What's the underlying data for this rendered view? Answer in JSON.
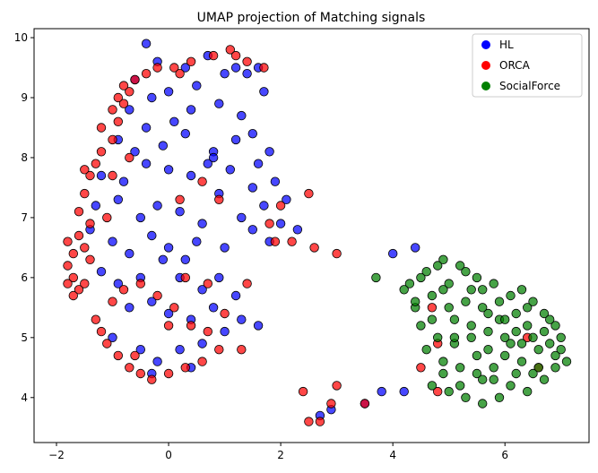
{
  "chart_data": {
    "type": "scatter",
    "title": "UMAP projection of Matching signals",
    "xlabel": "",
    "ylabel": "",
    "xlim": [
      -2.4,
      7.5
    ],
    "ylim": [
      3.25,
      10.15
    ],
    "xticks": [
      -2,
      0,
      2,
      4,
      6
    ],
    "yticks": [
      4,
      5,
      6,
      7,
      8,
      9,
      10
    ],
    "grid": false,
    "legend_position": "top-right",
    "series": [
      {
        "name": "HL",
        "color": "#0000ff",
        "points": [
          [
            -0.4,
            9.9
          ],
          [
            -0.2,
            9.6
          ],
          [
            0.3,
            9.5
          ],
          [
            0.7,
            9.7
          ],
          [
            1.0,
            9.4
          ],
          [
            1.2,
            9.5
          ],
          [
            1.6,
            9.5
          ],
          [
            -0.6,
            9.3
          ],
          [
            -0.3,
            9.0
          ],
          [
            0.0,
            9.1
          ],
          [
            0.5,
            9.2
          ],
          [
            1.4,
            9.4
          ],
          [
            1.7,
            9.1
          ],
          [
            -0.7,
            8.8
          ],
          [
            -0.4,
            8.5
          ],
          [
            0.1,
            8.6
          ],
          [
            0.4,
            8.8
          ],
          [
            0.9,
            8.9
          ],
          [
            1.3,
            8.7
          ],
          [
            1.5,
            8.4
          ],
          [
            -0.9,
            8.3
          ],
          [
            -0.6,
            8.1
          ],
          [
            -0.1,
            8.2
          ],
          [
            0.3,
            8.4
          ],
          [
            0.8,
            8.1
          ],
          [
            1.2,
            8.3
          ],
          [
            1.8,
            8.1
          ],
          [
            -1.2,
            7.7
          ],
          [
            -0.8,
            7.6
          ],
          [
            -0.4,
            7.9
          ],
          [
            0.0,
            7.8
          ],
          [
            0.4,
            7.7
          ],
          [
            0.7,
            7.9
          ],
          [
            1.1,
            7.8
          ],
          [
            1.5,
            7.5
          ],
          [
            1.9,
            7.6
          ],
          [
            -1.3,
            7.2
          ],
          [
            -0.9,
            7.3
          ],
          [
            -0.5,
            7.0
          ],
          [
            -0.2,
            7.2
          ],
          [
            0.2,
            7.1
          ],
          [
            0.6,
            6.9
          ],
          [
            0.9,
            7.4
          ],
          [
            1.3,
            7.0
          ],
          [
            1.7,
            7.2
          ],
          [
            2.0,
            6.9
          ],
          [
            2.3,
            6.8
          ],
          [
            -1.4,
            6.8
          ],
          [
            -1.0,
            6.6
          ],
          [
            -0.7,
            6.4
          ],
          [
            -0.3,
            6.7
          ],
          [
            0.0,
            6.5
          ],
          [
            0.3,
            6.3
          ],
          [
            0.5,
            6.6
          ],
          [
            1.0,
            6.5
          ],
          [
            1.5,
            6.8
          ],
          [
            1.8,
            6.6
          ],
          [
            -1.2,
            6.1
          ],
          [
            -0.9,
            5.9
          ],
          [
            -0.5,
            6.0
          ],
          [
            -0.1,
            6.3
          ],
          [
            0.2,
            6.0
          ],
          [
            0.6,
            5.8
          ],
          [
            0.9,
            6.0
          ],
          [
            1.2,
            5.7
          ],
          [
            -0.7,
            5.5
          ],
          [
            -0.3,
            5.6
          ],
          [
            0.0,
            5.4
          ],
          [
            0.4,
            5.3
          ],
          [
            0.8,
            5.5
          ],
          [
            1.3,
            5.3
          ],
          [
            1.6,
            5.2
          ],
          [
            -1.0,
            5.0
          ],
          [
            -0.5,
            4.8
          ],
          [
            -0.2,
            4.6
          ],
          [
            0.2,
            4.8
          ],
          [
            0.6,
            4.9
          ],
          [
            1.0,
            5.1
          ],
          [
            -0.3,
            4.4
          ],
          [
            0.4,
            4.5
          ],
          [
            3.8,
            4.1
          ],
          [
            4.0,
            6.4
          ],
          [
            4.4,
            6.5
          ],
          [
            3.5,
            3.9
          ],
          [
            2.7,
            3.7
          ],
          [
            2.9,
            3.8
          ],
          [
            4.2,
            4.1
          ],
          [
            0.8,
            8.0
          ],
          [
            1.6,
            7.9
          ],
          [
            2.1,
            7.3
          ]
        ]
      },
      {
        "name": "ORCA",
        "color": "#ff0000",
        "points": [
          [
            -1.8,
            6.6
          ],
          [
            -1.7,
            6.4
          ],
          [
            -1.8,
            6.2
          ],
          [
            -1.7,
            6.0
          ],
          [
            -1.6,
            5.8
          ],
          [
            -1.5,
            6.5
          ],
          [
            -1.4,
            6.3
          ],
          [
            -1.6,
            6.7
          ],
          [
            -1.8,
            5.9
          ],
          [
            -1.5,
            5.9
          ],
          [
            -1.5,
            7.4
          ],
          [
            -1.4,
            7.7
          ],
          [
            -1.3,
            7.9
          ],
          [
            -1.2,
            8.1
          ],
          [
            -1.0,
            8.3
          ],
          [
            -0.9,
            8.6
          ],
          [
            -0.8,
            8.9
          ],
          [
            -0.7,
            9.1
          ],
          [
            -0.6,
            9.3
          ],
          [
            -0.4,
            9.4
          ],
          [
            -0.2,
            9.5
          ],
          [
            0.1,
            9.5
          ],
          [
            0.4,
            9.6
          ],
          [
            0.8,
            9.7
          ],
          [
            1.1,
            9.8
          ],
          [
            1.4,
            9.6
          ],
          [
            1.7,
            9.5
          ],
          [
            -1.2,
            8.5
          ],
          [
            -1.0,
            8.8
          ],
          [
            -0.8,
            9.2
          ],
          [
            -1.3,
            5.3
          ],
          [
            -1.2,
            5.1
          ],
          [
            -1.1,
            4.9
          ],
          [
            -0.9,
            4.7
          ],
          [
            -0.7,
            4.5
          ],
          [
            -0.5,
            4.4
          ],
          [
            -0.3,
            4.3
          ],
          [
            0.0,
            4.4
          ],
          [
            0.3,
            4.5
          ],
          [
            0.6,
            4.6
          ],
          [
            0.9,
            4.8
          ],
          [
            -1.0,
            5.6
          ],
          [
            -0.8,
            5.8
          ],
          [
            -0.5,
            5.9
          ],
          [
            -0.2,
            5.7
          ],
          [
            0.1,
            5.5
          ],
          [
            0.4,
            5.2
          ],
          [
            0.7,
            5.1
          ],
          [
            1.0,
            5.4
          ],
          [
            0.2,
            7.3
          ],
          [
            0.6,
            7.6
          ],
          [
            0.9,
            7.3
          ],
          [
            0.3,
            6.0
          ],
          [
            0.7,
            5.9
          ],
          [
            1.3,
            4.8
          ],
          [
            -1.6,
            7.1
          ],
          [
            -1.4,
            6.9
          ],
          [
            -1.1,
            7.0
          ],
          [
            -1.0,
            7.7
          ],
          [
            -0.7,
            8.0
          ],
          [
            2.4,
            4.1
          ],
          [
            2.5,
            3.6
          ],
          [
            2.7,
            3.6
          ],
          [
            2.9,
            3.9
          ],
          [
            3.0,
            4.2
          ],
          [
            3.5,
            3.9
          ],
          [
            3.0,
            6.4
          ],
          [
            2.6,
            6.5
          ],
          [
            2.2,
            6.6
          ],
          [
            1.9,
            6.6
          ],
          [
            1.8,
            6.9
          ],
          [
            2.0,
            7.2
          ],
          [
            2.5,
            7.4
          ],
          [
            1.4,
            5.9
          ],
          [
            4.7,
            5.5
          ],
          [
            4.8,
            4.9
          ],
          [
            4.5,
            4.5
          ],
          [
            6.4,
            5.0
          ],
          [
            6.6,
            4.5
          ],
          [
            4.8,
            4.1
          ],
          [
            -1.5,
            7.8
          ],
          [
            -0.9,
            9.0
          ],
          [
            0.2,
            9.4
          ],
          [
            1.2,
            9.7
          ],
          [
            -1.7,
            5.7
          ],
          [
            -0.6,
            4.7
          ],
          [
            0.0,
            5.2
          ]
        ]
      },
      {
        "name": "SocialForce",
        "color": "#008000",
        "points": [
          [
            4.3,
            5.9
          ],
          [
            4.6,
            6.1
          ],
          [
            4.9,
            6.3
          ],
          [
            5.2,
            6.2
          ],
          [
            5.5,
            6.0
          ],
          [
            5.8,
            5.9
          ],
          [
            6.1,
            5.7
          ],
          [
            6.4,
            5.5
          ],
          [
            6.7,
            5.4
          ],
          [
            6.9,
            5.2
          ],
          [
            4.4,
            5.5
          ],
          [
            4.7,
            5.7
          ],
          [
            5.0,
            5.9
          ],
          [
            5.3,
            5.6
          ],
          [
            5.6,
            5.5
          ],
          [
            5.9,
            5.3
          ],
          [
            6.2,
            5.1
          ],
          [
            6.5,
            5.0
          ],
          [
            6.8,
            4.9
          ],
          [
            7.0,
            4.8
          ],
          [
            4.5,
            5.2
          ],
          [
            4.8,
            5.0
          ],
          [
            5.1,
            4.9
          ],
          [
            5.4,
            5.0
          ],
          [
            5.7,
            4.8
          ],
          [
            6.0,
            4.7
          ],
          [
            6.3,
            4.6
          ],
          [
            6.6,
            4.5
          ],
          [
            6.9,
            4.7
          ],
          [
            7.1,
            4.6
          ],
          [
            4.6,
            4.8
          ],
          [
            4.9,
            4.6
          ],
          [
            5.2,
            4.5
          ],
          [
            5.5,
            4.4
          ],
          [
            5.8,
            4.3
          ],
          [
            6.1,
            4.2
          ],
          [
            6.4,
            4.1
          ],
          [
            6.7,
            4.3
          ],
          [
            4.7,
            4.2
          ],
          [
            5.0,
            4.1
          ],
          [
            5.3,
            4.0
          ],
          [
            5.6,
            3.9
          ],
          [
            5.9,
            4.0
          ],
          [
            6.2,
            4.4
          ],
          [
            4.2,
            5.8
          ],
          [
            4.5,
            6.0
          ],
          [
            4.8,
            6.2
          ],
          [
            5.1,
            5.3
          ],
          [
            5.4,
            5.2
          ],
          [
            5.7,
            5.1
          ],
          [
            6.0,
            5.0
          ],
          [
            6.3,
            4.9
          ],
          [
            6.6,
            4.8
          ],
          [
            6.8,
            5.3
          ],
          [
            6.5,
            5.6
          ],
          [
            6.2,
            5.4
          ],
          [
            5.9,
            5.6
          ],
          [
            5.6,
            5.8
          ],
          [
            5.3,
            6.1
          ],
          [
            5.0,
            5.5
          ],
          [
            4.7,
            5.3
          ],
          [
            4.4,
            5.6
          ],
          [
            3.7,
            6.0
          ],
          [
            4.9,
            4.4
          ],
          [
            5.2,
            4.2
          ],
          [
            5.5,
            4.7
          ],
          [
            5.8,
            4.5
          ],
          [
            6.1,
            4.9
          ],
          [
            6.4,
            5.2
          ],
          [
            6.7,
            5.1
          ],
          [
            5.4,
            5.8
          ],
          [
            5.7,
            5.4
          ],
          [
            6.0,
            5.3
          ],
          [
            6.3,
            5.8
          ],
          [
            5.1,
            5.0
          ],
          [
            4.9,
            5.8
          ],
          [
            5.6,
            4.3
          ],
          [
            6.5,
            4.4
          ],
          [
            7.0,
            5.0
          ],
          [
            6.9,
            4.5
          ]
        ]
      }
    ]
  }
}
